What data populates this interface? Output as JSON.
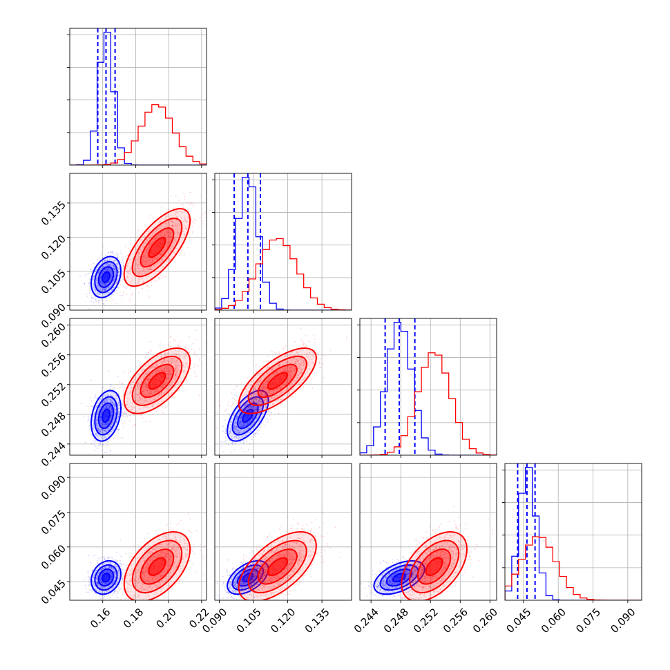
{
  "chart_data": {
    "type": "corner",
    "title": "",
    "grid": true,
    "series_colors": {
      "blue": "#0000ff",
      "red": "#ff0000"
    },
    "parameters": [
      {
        "range": [
          0.14,
          0.223
        ],
        "ticks": [
          0.16,
          0.18,
          0.2,
          0.22
        ],
        "tick_labels": [
          "0.16",
          "0.18",
          "0.20",
          "0.22"
        ]
      },
      {
        "range": [
          0.088,
          0.148
        ],
        "ticks": [
          0.09,
          0.105,
          0.12,
          0.135
        ],
        "tick_labels": [
          "0.090",
          "0.105",
          "0.120",
          "0.135"
        ]
      },
      {
        "range": [
          0.2425,
          0.2609
        ],
        "ticks": [
          0.244,
          0.248,
          0.252,
          0.256,
          0.26
        ],
        "tick_labels": [
          "0.244",
          "0.248",
          "0.252",
          "0.256",
          "0.260"
        ]
      },
      {
        "range": [
          0.037,
          0.096
        ],
        "ticks": [
          0.045,
          0.06,
          0.075,
          0.09
        ],
        "tick_labels": [
          "0.045",
          "0.060",
          "0.075",
          "0.090"
        ]
      }
    ],
    "series": [
      {
        "color": "blue",
        "means": [
          0.162,
          0.1025,
          0.2478,
          0.0468
        ],
        "sigmas": [
          0.0045,
          0.0045,
          0.0017,
          0.0036
        ],
        "correlations": [
          [
            0,
            1,
            0.3
          ],
          [
            0,
            2,
            0.3
          ],
          [
            0,
            3,
            0.2
          ],
          [
            1,
            2,
            0.6
          ],
          [
            1,
            3,
            0.5
          ],
          [
            2,
            3,
            0.5
          ]
        ],
        "quantile_lines": [
          [
            0.157,
            0.162,
            0.1675
          ],
          [
            0.0965,
            0.1025,
            0.108
          ],
          [
            0.2459,
            0.2478,
            0.2499
          ],
          [
            0.0425,
            0.0465,
            0.05
          ]
        ]
      },
      {
        "color": "red",
        "means": [
          0.193,
          0.1155,
          0.2525,
          0.0515
        ],
        "sigmas": [
          0.01,
          0.0085,
          0.0022,
          0.0075
        ],
        "correlations": [
          [
            0,
            1,
            0.7
          ],
          [
            0,
            2,
            0.6
          ],
          [
            0,
            3,
            0.5
          ],
          [
            1,
            2,
            0.7
          ],
          [
            1,
            3,
            0.6
          ],
          [
            2,
            3,
            0.5
          ]
        ]
      }
    ]
  }
}
